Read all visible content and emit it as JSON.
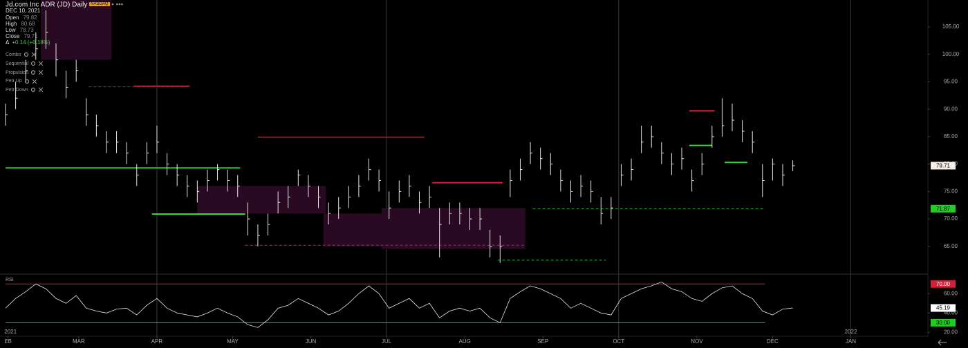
{
  "header": {
    "title": "Jd.com Inc ADR (JD)",
    "interval": "Daily",
    "exchange": "NASDAQ",
    "date": "DEC 10, 2021",
    "ohlc": [
      {
        "label": "Open",
        "value": "79.82"
      },
      {
        "label": "High",
        "value": "80.68"
      },
      {
        "label": "Low",
        "value": "78.73"
      },
      {
        "label": "Close",
        "value": "79.71"
      }
    ],
    "change_label": "Δ",
    "change": "+0.14 (+0.18%)"
  },
  "indicators": [
    "Combo",
    "Sequential",
    "Propulsion",
    "Petr Up",
    "Petr Down"
  ],
  "chart_data": [
    {
      "type": "ohlc",
      "x": [
        31,
        35,
        39,
        43,
        47,
        51,
        55,
        59,
        63,
        67,
        71,
        75,
        79,
        83,
        87,
        91,
        95,
        99,
        103,
        107,
        111,
        115,
        119,
        123,
        127,
        131,
        135,
        139,
        143,
        147,
        151,
        155,
        159,
        163,
        167,
        171,
        175,
        179,
        183,
        187,
        191,
        195,
        199,
        203,
        207,
        211,
        215,
        219,
        223,
        227,
        231,
        235,
        239,
        243,
        247,
        251,
        255,
        259,
        263,
        267,
        271,
        275,
        279,
        283,
        287,
        291,
        295,
        299,
        303,
        307,
        311,
        315,
        319,
        323,
        327,
        331,
        335,
        339,
        343
      ],
      "high": [
        91,
        95,
        99,
        104,
        108,
        102,
        97,
        99,
        92,
        89,
        86,
        86,
        84,
        80,
        84,
        87,
        82,
        80,
        78,
        77,
        79,
        80,
        79,
        78,
        73,
        69,
        71,
        75,
        76,
        79,
        78,
        76,
        73,
        74,
        76,
        78,
        81,
        79,
        75,
        77,
        78,
        75,
        76,
        72,
        73,
        73,
        72,
        72,
        68,
        67,
        79,
        81,
        84,
        83,
        82,
        79,
        77,
        78,
        77,
        74,
        74,
        80,
        81,
        87,
        87,
        84,
        82,
        83,
        79,
        82,
        87,
        92,
        91,
        88,
        86,
        80,
        81,
        80,
        80.68
      ],
      "low": [
        87,
        90,
        95,
        99,
        101,
        96,
        92,
        95,
        87,
        85,
        82,
        82,
        80,
        76,
        80,
        82,
        78,
        76,
        74,
        73,
        75,
        77,
        75,
        74,
        67,
        65,
        67,
        71,
        72,
        76,
        74,
        72,
        69,
        70,
        72,
        74,
        77,
        75,
        70,
        73,
        74,
        71,
        72,
        63,
        69,
        69,
        68,
        68,
        63,
        62,
        74,
        77,
        80,
        79,
        78,
        75,
        73,
        74,
        73,
        69,
        70,
        76,
        77,
        82,
        83,
        80,
        78,
        79,
        75,
        78,
        83,
        85,
        86,
        84,
        82,
        74,
        77,
        76,
        78.73
      ],
      "close": [
        89,
        92,
        97,
        101,
        104,
        99,
        94,
        97,
        89,
        87,
        84,
        84,
        82,
        78,
        82,
        84,
        80,
        78,
        76,
        75,
        77,
        79,
        77,
        76,
        70,
        67,
        69,
        73,
        74,
        78,
        76,
        74,
        71,
        72,
        74,
        76,
        79,
        77,
        72,
        75,
        76,
        73,
        74,
        69,
        71,
        71,
        70,
        70,
        65,
        65,
        77,
        79,
        82,
        81,
        80,
        77,
        75,
        76,
        75,
        71,
        72,
        78,
        79,
        84,
        85,
        82,
        80,
        81,
        77,
        80,
        85,
        87,
        88,
        86,
        84,
        77,
        80,
        78,
        79.71
      ],
      "color": "#e8e8e8",
      "xlim": [
        31,
        396
      ],
      "xticks": [
        {
          "value": 32,
          "label": "EB"
        },
        {
          "value": 60,
          "label": "MAR"
        },
        {
          "value": 91,
          "label": "APR"
        },
        {
          "value": 121,
          "label": "MAY"
        },
        {
          "value": 152,
          "label": "JUN"
        },
        {
          "value": 182,
          "label": "JUL"
        },
        {
          "value": 213,
          "label": "AUG"
        },
        {
          "value": 244,
          "label": "SEP"
        },
        {
          "value": 274,
          "label": "OCT"
        },
        {
          "value": 305,
          "label": "NOV"
        },
        {
          "value": 335,
          "label": "DEC"
        },
        {
          "value": 366,
          "label": "JAN"
        }
      ],
      "year_labels": [
        {
          "value": 33,
          "label": "2021"
        },
        {
          "value": 366,
          "label": "2022"
        }
      ],
      "vlines": [
        91,
        182,
        274,
        366
      ],
      "ylim": [
        60.2,
        109.9
      ],
      "yticks": [
        {
          "value": 65,
          "label": "65.00"
        },
        {
          "value": 70,
          "label": "70.00"
        },
        {
          "value": 75,
          "label": "75.00"
        },
        {
          "value": 80,
          "label": "80.00"
        },
        {
          "value": 85,
          "label": "85.00"
        },
        {
          "value": 90,
          "label": "90.00"
        },
        {
          "value": 95,
          "label": "95.00"
        },
        {
          "value": 100,
          "label": "100.00"
        },
        {
          "value": 105,
          "label": "105.00"
        }
      ],
      "tags": [
        {
          "value": 79.71,
          "label": "79.71",
          "color": "#f5eee6",
          "text_color": "#000000"
        },
        {
          "value": 71.87,
          "label": "71.87",
          "color": "#22cc22",
          "text_color": "#000000"
        }
      ],
      "zones": [
        {
          "x": [
            45,
            73
          ],
          "y": [
            99,
            110
          ],
          "color": "#2a0a22"
        },
        {
          "x": [
            107,
            158
          ],
          "y": [
            71,
            76
          ],
          "color": "#2a0a22"
        },
        {
          "x": [
            157,
            180
          ],
          "y": [
            65,
            71
          ],
          "color": "#2a0a22"
        },
        {
          "x": [
            180,
            237
          ],
          "y": [
            64.5,
            72
          ],
          "color": "#2a0a22"
        }
      ],
      "levels": [
        {
          "x": [
            31,
            124
          ],
          "y": 79.3,
          "color": "#2fbf2f",
          "style": "solid"
        },
        {
          "x": [
            64,
            104
          ],
          "y": 94.1,
          "color": "#a0203a",
          "style": "dashed"
        },
        {
          "x": [
            82,
            104
          ],
          "y": 94.2,
          "color": "#b02030",
          "style": "solid"
        },
        {
          "x": [
            89,
            126
          ],
          "y": 70.9,
          "color": "#33dd33",
          "style": "solid"
        },
        {
          "x": [
            126,
            237
          ],
          "y": 65.2,
          "color": "#b0206a",
          "style": "dashed"
        },
        {
          "x": [
            131,
            197
          ],
          "y": 84.9,
          "color": "#8a1a28",
          "style": "solid"
        },
        {
          "x": [
            200,
            228
          ],
          "y": 76.6,
          "color": "#e0203a",
          "style": "solid"
        },
        {
          "x": [
            226,
            269
          ],
          "y": 62.5,
          "color": "#2fbf2f",
          "style": "dashed"
        },
        {
          "x": [
            240,
            332
          ],
          "y": 71.87,
          "color": "#2fbf2f",
          "style": "dashed"
        },
        {
          "x": [
            302,
            311
          ],
          "y": 83.4,
          "color": "#33dd33",
          "style": "solid"
        },
        {
          "x": [
            302,
            312
          ],
          "y": 89.7,
          "color": "#e0203a",
          "style": "solid"
        },
        {
          "x": [
            316,
            325
          ],
          "y": 80.3,
          "color": "#33dd33",
          "style": "solid"
        }
      ]
    },
    {
      "type": "line",
      "title": "RSI",
      "x": [
        31,
        35,
        39,
        43,
        47,
        51,
        55,
        59,
        63,
        67,
        71,
        75,
        79,
        83,
        87,
        91,
        95,
        99,
        103,
        107,
        111,
        115,
        119,
        123,
        127,
        131,
        135,
        139,
        143,
        147,
        151,
        155,
        159,
        163,
        167,
        171,
        175,
        179,
        183,
        187,
        191,
        195,
        199,
        203,
        207,
        211,
        215,
        219,
        223,
        227,
        231,
        235,
        239,
        243,
        247,
        251,
        255,
        259,
        263,
        267,
        271,
        275,
        279,
        283,
        287,
        291,
        295,
        299,
        303,
        307,
        311,
        315,
        319,
        323,
        327,
        331,
        335,
        339,
        343
      ],
      "values": [
        45,
        55,
        62,
        70,
        65,
        55,
        50,
        58,
        45,
        42,
        40,
        44,
        45,
        38,
        48,
        55,
        45,
        40,
        38,
        36,
        40,
        45,
        40,
        36,
        28,
        25,
        33,
        45,
        48,
        55,
        50,
        45,
        38,
        42,
        50,
        60,
        68,
        60,
        45,
        50,
        55,
        45,
        50,
        35,
        42,
        45,
        42,
        45,
        35,
        30,
        55,
        62,
        68,
        65,
        60,
        55,
        45,
        50,
        45,
        40,
        38,
        55,
        60,
        65,
        68,
        72,
        65,
        62,
        55,
        52,
        60,
        66,
        68,
        60,
        55,
        42,
        38,
        44,
        45.19
      ],
      "color": "#e8e8e8",
      "xlim": [
        31,
        396
      ],
      "ylim": [
        16,
        78
      ],
      "yticks": [
        {
          "value": 20,
          "label": "20.00"
        },
        {
          "value": 40,
          "label": "40.00"
        },
        {
          "value": 60,
          "label": "60.00"
        }
      ],
      "bands": [
        {
          "value": 70,
          "color": "#c8203a"
        },
        {
          "value": 30,
          "color": "#2fbf2f"
        }
      ],
      "band_end": 332,
      "tags": [
        {
          "value": 70,
          "label": "70.00",
          "color": "#d0203a",
          "text_color": "#ffffff"
        },
        {
          "value": 45.19,
          "label": "45.19",
          "color": "#ffffff",
          "text_color": "#000000"
        },
        {
          "value": 30,
          "label": "30.00",
          "color": "#22cc22",
          "text_color": "#000000"
        }
      ]
    }
  ]
}
